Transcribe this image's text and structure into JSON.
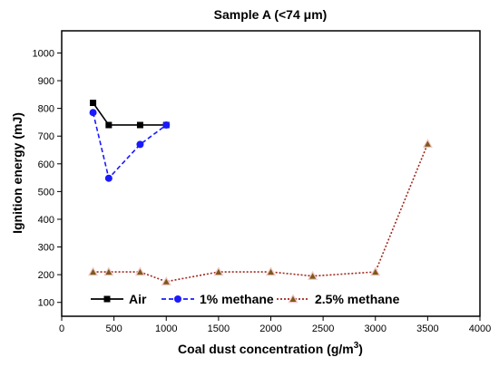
{
  "chart_data": {
    "type": "line",
    "title": "Sample A (<74 μm)",
    "xlabel": "Coal dust concentration (g/m",
    "xlabel_sup": "3",
    "xlabel_close": ")",
    "ylabel": "Ignition energy (mJ)",
    "xlim": [
      0,
      4000
    ],
    "ylim": [
      50,
      1080
    ],
    "xticks": [
      0,
      500,
      1000,
      1500,
      2000,
      2500,
      3000,
      3500,
      4000
    ],
    "yticks": [
      100,
      200,
      300,
      400,
      500,
      600,
      700,
      800,
      900,
      1000
    ],
    "grid": false,
    "legend_position": "bottom",
    "series": [
      {
        "name": "Air",
        "color": "#000000",
        "marker": "square",
        "dash": "solid",
        "x": [
          300,
          450,
          750,
          1000
        ],
        "y": [
          820,
          740,
          740,
          740
        ]
      },
      {
        "name": "1% methane",
        "color": "#1a1aff",
        "marker": "circle",
        "dash": "dashed",
        "x": [
          300,
          450,
          750,
          1000
        ],
        "y": [
          785,
          548,
          670,
          740
        ]
      },
      {
        "name": "2.5% methane",
        "color": "#a0281e",
        "marker_color": "#7a5a1a",
        "marker": "triangle",
        "dash": "dotted",
        "x": [
          300,
          450,
          750,
          1000,
          1500,
          2000,
          2400,
          3000,
          3500
        ],
        "y": [
          210,
          210,
          210,
          175,
          210,
          210,
          195,
          210,
          672
        ]
      }
    ]
  }
}
